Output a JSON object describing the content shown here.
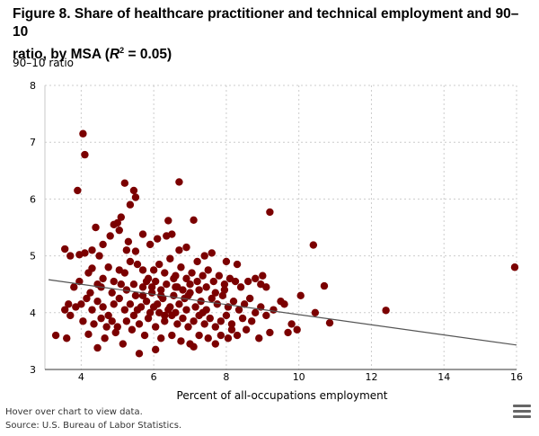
{
  "title_line1": "Figure 8. Share of healthcare practitioner and technical employment and 90–10",
  "title_line2_prefix": "ratio, by MSA (",
  "title_r": "R",
  "title_sup": "2",
  "title_line2_suffix": " = 0.05)",
  "footer": {
    "hover_note": "Hover over chart to view data.",
    "source": "Source: U.S. Bureau of Labor Statistics."
  },
  "chart_data": {
    "type": "scatter",
    "ylabel": "90–10 ratio",
    "xlabel": "Percent of all-occupations employment",
    "xlim": [
      3,
      16
    ],
    "ylim": [
      3,
      8
    ],
    "x_ticks": [
      4,
      6,
      8,
      10,
      12,
      14,
      16
    ],
    "y_ticks": [
      3,
      4,
      5,
      6,
      7,
      8
    ],
    "grid": "dotted",
    "legend": "none",
    "point_color": "#7b0000",
    "trendline": {
      "x": [
        3.1,
        16
      ],
      "y": [
        4.58,
        3.43
      ],
      "color": "#555555"
    },
    "points": [
      [
        4.05,
        7.15
      ],
      [
        4.1,
        6.78
      ],
      [
        3.9,
        6.15
      ],
      [
        5.2,
        6.28
      ],
      [
        5.45,
        6.15
      ],
      [
        5.5,
        6.03
      ],
      [
        6.7,
        6.3
      ],
      [
        5.35,
        5.9
      ],
      [
        6.4,
        5.62
      ],
      [
        7.1,
        5.63
      ],
      [
        9.2,
        5.77
      ],
      [
        10.4,
        5.19
      ],
      [
        15.95,
        4.8
      ],
      [
        3.55,
        5.12
      ],
      [
        3.7,
        5.0
      ],
      [
        3.95,
        5.02
      ],
      [
        4.1,
        5.05
      ],
      [
        4.3,
        5.1
      ],
      [
        4.5,
        5.0
      ],
      [
        4.9,
        5.55
      ],
      [
        5.0,
        5.58
      ],
      [
        5.1,
        5.68
      ],
      [
        5.3,
        5.25
      ],
      [
        5.5,
        5.08
      ],
      [
        5.7,
        5.38
      ],
      [
        5.9,
        5.2
      ],
      [
        6.1,
        5.3
      ],
      [
        6.35,
        5.35
      ],
      [
        6.5,
        5.38
      ],
      [
        6.7,
        5.1
      ],
      [
        6.9,
        5.15
      ],
      [
        7.2,
        4.9
      ],
      [
        7.4,
        5.0
      ],
      [
        7.6,
        5.05
      ],
      [
        8.0,
        4.9
      ],
      [
        8.3,
        4.85
      ],
      [
        4.6,
        5.2
      ],
      [
        4.8,
        5.35
      ],
      [
        5.05,
        5.45
      ],
      [
        5.25,
        5.1
      ],
      [
        4.4,
        5.5
      ],
      [
        3.8,
        4.45
      ],
      [
        3.95,
        4.55
      ],
      [
        4.2,
        4.7
      ],
      [
        4.3,
        4.78
      ],
      [
        4.45,
        4.5
      ],
      [
        4.6,
        4.6
      ],
      [
        4.75,
        4.8
      ],
      [
        4.9,
        4.55
      ],
      [
        5.05,
        4.75
      ],
      [
        5.2,
        4.7
      ],
      [
        5.35,
        4.9
      ],
      [
        5.55,
        4.85
      ],
      [
        5.7,
        4.75
      ],
      [
        5.85,
        4.6
      ],
      [
        6.0,
        4.75
      ],
      [
        6.15,
        4.85
      ],
      [
        6.3,
        4.7
      ],
      [
        6.45,
        4.95
      ],
      [
        6.6,
        4.65
      ],
      [
        6.75,
        4.8
      ],
      [
        6.9,
        4.6
      ],
      [
        7.05,
        4.7
      ],
      [
        7.2,
        4.55
      ],
      [
        7.35,
        4.65
      ],
      [
        7.5,
        4.75
      ],
      [
        7.65,
        4.55
      ],
      [
        7.8,
        4.65
      ],
      [
        7.95,
        4.5
      ],
      [
        8.1,
        4.6
      ],
      [
        8.25,
        4.55
      ],
      [
        8.4,
        4.45
      ],
      [
        8.6,
        4.55
      ],
      [
        8.8,
        4.6
      ],
      [
        8.95,
        4.5
      ],
      [
        9.1,
        4.45
      ],
      [
        9.0,
        4.65
      ],
      [
        9.5,
        4.2
      ],
      [
        10.05,
        4.3
      ],
      [
        10.7,
        4.47
      ],
      [
        12.4,
        4.04
      ],
      [
        10.45,
        4.0
      ],
      [
        10.85,
        3.82
      ],
      [
        3.55,
        4.05
      ],
      [
        3.7,
        3.95
      ],
      [
        3.85,
        4.1
      ],
      [
        4.0,
        4.15
      ],
      [
        4.15,
        4.25
      ],
      [
        4.3,
        4.05
      ],
      [
        4.45,
        4.2
      ],
      [
        4.6,
        4.1
      ],
      [
        4.75,
        3.95
      ],
      [
        4.9,
        4.15
      ],
      [
        5.05,
        4.25
      ],
      [
        5.2,
        4.05
      ],
      [
        5.35,
        4.15
      ],
      [
        5.5,
        4.3
      ],
      [
        5.65,
        4.1
      ],
      [
        5.8,
        4.2
      ],
      [
        5.95,
        4.35
      ],
      [
        6.1,
        4.15
      ],
      [
        6.25,
        4.25
      ],
      [
        6.4,
        4.05
      ],
      [
        6.55,
        4.3
      ],
      [
        6.7,
        4.15
      ],
      [
        6.85,
        4.25
      ],
      [
        7.0,
        4.35
      ],
      [
        7.15,
        4.1
      ],
      [
        7.3,
        4.2
      ],
      [
        7.45,
        4.05
      ],
      [
        7.6,
        4.25
      ],
      [
        7.75,
        4.15
      ],
      [
        7.9,
        4.3
      ],
      [
        8.05,
        4.1
      ],
      [
        8.2,
        4.2
      ],
      [
        8.35,
        4.05
      ],
      [
        8.5,
        4.15
      ],
      [
        8.65,
        4.25
      ],
      [
        8.8,
        4.0
      ],
      [
        8.95,
        4.1
      ],
      [
        9.1,
        3.95
      ],
      [
        9.3,
        4.05
      ],
      [
        9.6,
        4.15
      ],
      [
        9.8,
        3.8
      ],
      [
        9.7,
        3.65
      ],
      [
        9.95,
        3.7
      ],
      [
        9.2,
        3.65
      ],
      [
        8.9,
        3.55
      ],
      [
        8.55,
        3.7
      ],
      [
        8.3,
        3.6
      ],
      [
        8.05,
        3.55
      ],
      [
        3.3,
        3.6
      ],
      [
        3.6,
        3.55
      ],
      [
        4.2,
        3.62
      ],
      [
        4.45,
        3.38
      ],
      [
        4.65,
        3.55
      ],
      [
        4.95,
        3.65
      ],
      [
        5.15,
        3.45
      ],
      [
        5.4,
        3.7
      ],
      [
        5.6,
        3.28
      ],
      [
        5.75,
        3.6
      ],
      [
        6.05,
        3.35
      ],
      [
        6.2,
        3.55
      ],
      [
        6.5,
        3.6
      ],
      [
        6.75,
        3.5
      ],
      [
        7.0,
        3.45
      ],
      [
        7.25,
        3.6
      ],
      [
        7.5,
        3.55
      ],
      [
        7.7,
        3.45
      ],
      [
        7.85,
        3.6
      ],
      [
        8.15,
        3.7
      ],
      [
        7.1,
        3.4
      ],
      [
        5.25,
        3.85
      ],
      [
        5.45,
        3.95
      ],
      [
        5.6,
        3.8
      ],
      [
        5.85,
        3.9
      ],
      [
        6.05,
        3.75
      ],
      [
        6.3,
        3.85
      ],
      [
        6.5,
        3.95
      ],
      [
        6.65,
        3.8
      ],
      [
        6.8,
        3.9
      ],
      [
        6.95,
        3.75
      ],
      [
        7.1,
        3.85
      ],
      [
        7.25,
        3.95
      ],
      [
        7.4,
        3.8
      ],
      [
        7.55,
        3.9
      ],
      [
        7.7,
        3.75
      ],
      [
        7.85,
        3.85
      ],
      [
        8.0,
        3.95
      ],
      [
        8.15,
        3.8
      ],
      [
        8.45,
        3.9
      ],
      [
        8.7,
        3.85
      ],
      [
        4.85,
        3.85
      ],
      [
        5.0,
        3.75
      ],
      [
        4.55,
        3.9
      ],
      [
        4.7,
        3.75
      ],
      [
        4.35,
        3.8
      ],
      [
        4.05,
        3.85
      ],
      [
        5.95,
        4.45
      ],
      [
        6.05,
        4.55
      ],
      [
        6.2,
        4.4
      ],
      [
        6.35,
        4.5
      ],
      [
        6.6,
        4.45
      ],
      [
        6.8,
        4.4
      ],
      [
        7.0,
        4.5
      ],
      [
        7.25,
        4.4
      ],
      [
        7.45,
        4.45
      ],
      [
        7.7,
        4.35
      ],
      [
        7.95,
        4.4
      ],
      [
        5.7,
        4.45
      ],
      [
        5.45,
        4.5
      ],
      [
        5.25,
        4.4
      ],
      [
        5.1,
        4.5
      ],
      [
        4.85,
        4.35
      ],
      [
        4.55,
        4.45
      ],
      [
        4.25,
        4.35
      ],
      [
        3.65,
        4.15
      ],
      [
        6.15,
        4.0
      ],
      [
        6.45,
        4.1
      ],
      [
        6.0,
        4.1
      ],
      [
        5.9,
        4.0
      ],
      [
        6.3,
        3.95
      ],
      [
        6.6,
        4.0
      ],
      [
        6.9,
        4.05
      ],
      [
        7.35,
        4.0
      ],
      [
        5.55,
        4.05
      ],
      [
        5.8,
        4.55
      ],
      [
        6.55,
        4.6
      ],
      [
        6.95,
        4.3
      ],
      [
        6.2,
        4.3
      ],
      [
        5.7,
        4.3
      ],
      [
        6.65,
        4.45
      ]
    ]
  }
}
